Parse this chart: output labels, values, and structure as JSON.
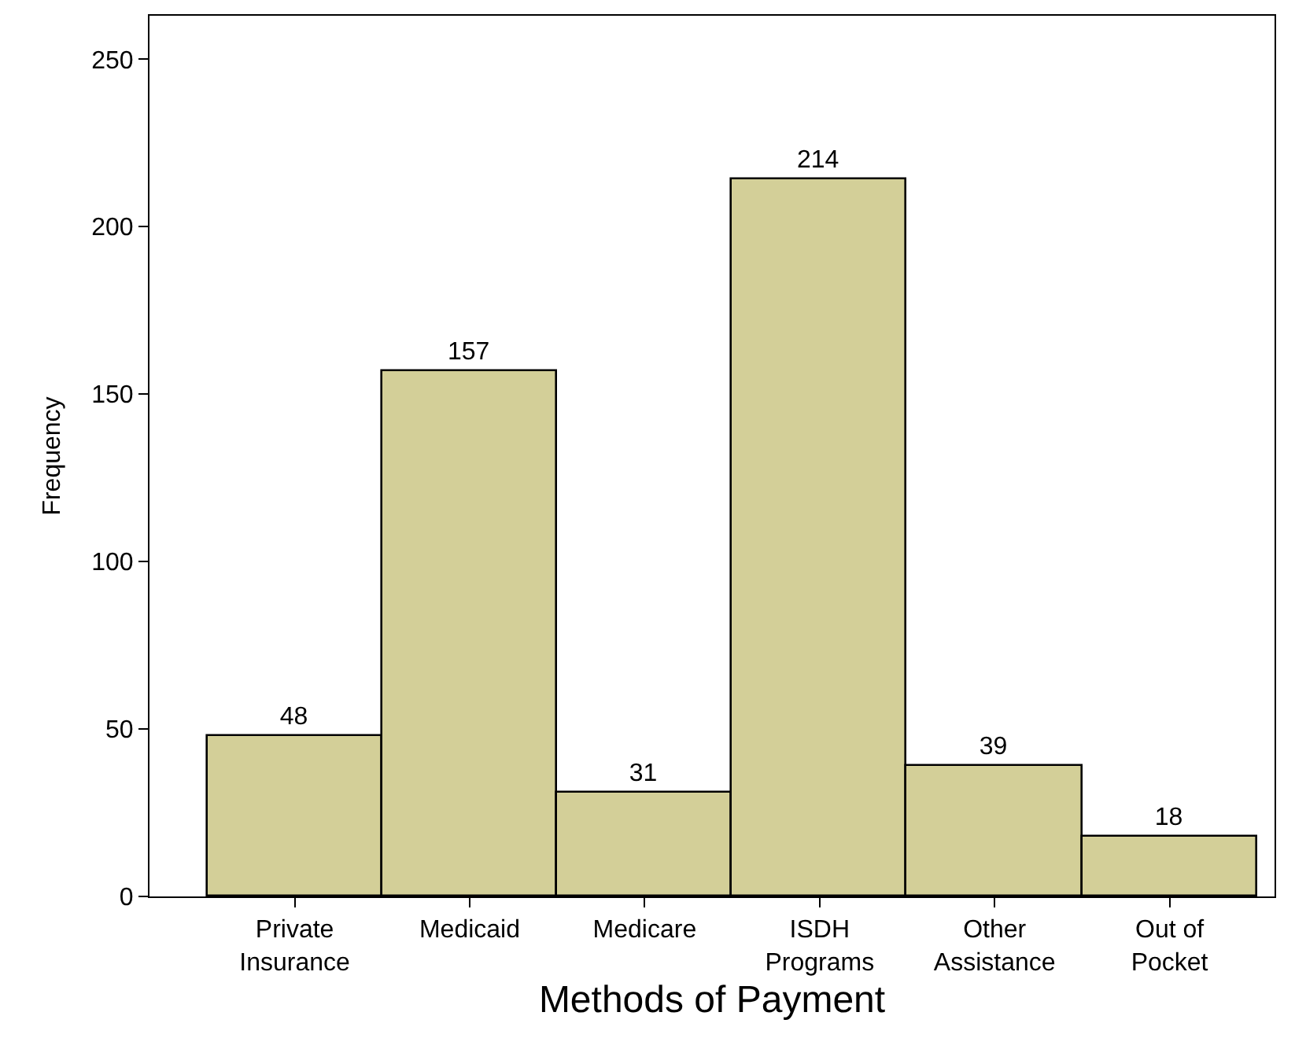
{
  "chart_data": {
    "type": "bar",
    "categories": [
      "Private\nInsurance",
      "Medicaid",
      "Medicare",
      "ISDH\nPrograms",
      "Other\nAssistance",
      "Out of\nPocket"
    ],
    "values": [
      48,
      157,
      31,
      214,
      39,
      18
    ],
    "color": "#d3cf98",
    "xlabel": "Methods of Payment",
    "ylabel": "Frequency",
    "ylim": [
      0,
      263
    ],
    "yticks": [
      0,
      50,
      100,
      150,
      200,
      250
    ],
    "data_labels": true
  }
}
